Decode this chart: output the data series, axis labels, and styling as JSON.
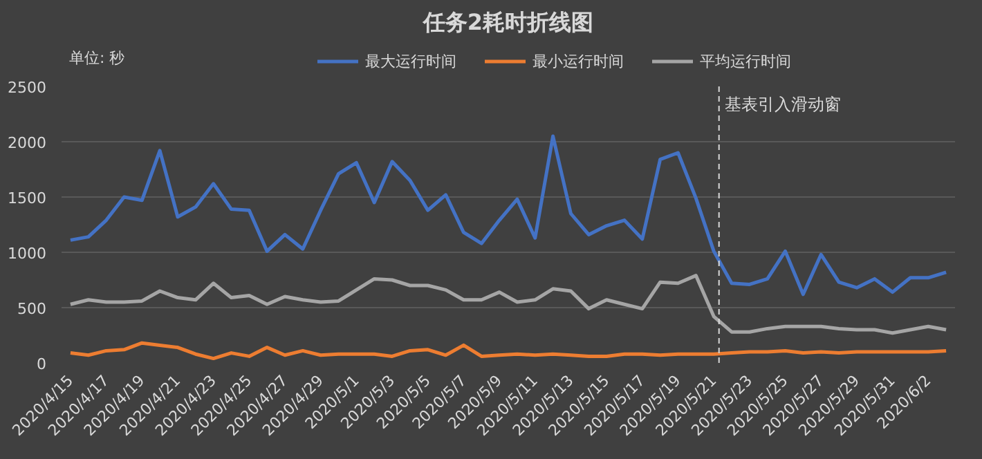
{
  "chart_data": {
    "type": "line",
    "title": "任务2耗时折线图",
    "annotations": [
      "单位:  秒"
    ],
    "x": [
      "2020-04-15",
      "2020-04-16",
      "2020-04-17",
      "2020-04-18",
      "2020-04-19",
      "2020-04-20",
      "2020-04-21",
      "2020-04-22",
      "2020-04-23",
      "2020-04-24",
      "2020-04-25",
      "2020-04-26",
      "2020-04-27",
      "2020-04-28",
      "2020-04-29",
      "2020-04-30",
      "2020-05-01",
      "2020-05-02",
      "2020-05-03",
      "2020-05-04",
      "2020-05-05",
      "2020-05-06",
      "2020-05-07",
      "2020-05-08",
      "2020-05-09",
      "2020-05-10",
      "2020-05-11",
      "2020-05-12",
      "2020-05-13",
      "2020-05-14",
      "2020-05-15",
      "2020-05-16",
      "2020-05-17",
      "2020-05-18",
      "2020-05-19",
      "2020-05-20",
      "2020-05-21",
      "2020-05-22",
      "2020-05-23",
      "2020-05-24",
      "2020-05-25",
      "2020-05-26",
      "2020-05-27",
      "2020-05-28",
      "2020-05-29",
      "2020-05-30",
      "2020-05-31",
      "2020-06-01",
      "2020-06-02",
      "2020-06-03"
    ],
    "series": [
      {
        "name": "最大运行时间",
        "color": "#4472c4",
        "values": [
          1110,
          1140,
          1290,
          1500,
          1470,
          1920,
          1320,
          1410,
          1620,
          1390,
          1380,
          1010,
          1160,
          1030,
          1380,
          1710,
          1810,
          1450,
          1820,
          1650,
          1380,
          1520,
          1180,
          1080,
          1290,
          1480,
          1130,
          2050,
          1350,
          1160,
          1240,
          1290,
          1120,
          1840,
          1900,
          1490,
          1010,
          720,
          710,
          760,
          1010,
          620,
          980,
          730,
          680,
          760,
          640,
          770,
          770,
          820
        ]
      },
      {
        "name": "最小运行时间",
        "color": "#ed7d31",
        "values": [
          90,
          70,
          110,
          120,
          180,
          160,
          140,
          80,
          40,
          90,
          60,
          140,
          70,
          110,
          70,
          80,
          80,
          80,
          60,
          110,
          120,
          70,
          160,
          60,
          70,
          80,
          70,
          80,
          70,
          60,
          60,
          80,
          80,
          70,
          80,
          80,
          80,
          90,
          100,
          100,
          110,
          90,
          100,
          90,
          100,
          100,
          100,
          100,
          100,
          110
        ]
      },
      {
        "name": "平均运行时间",
        "color": "#a5a5a5",
        "values": [
          530,
          570,
          550,
          550,
          560,
          650,
          590,
          570,
          720,
          590,
          610,
          530,
          600,
          570,
          550,
          560,
          660,
          760,
          750,
          700,
          700,
          660,
          570,
          570,
          640,
          550,
          570,
          670,
          650,
          490,
          570,
          530,
          490,
          730,
          720,
          790,
          420,
          280,
          280,
          310,
          330,
          330,
          330,
          310,
          300,
          300,
          270,
          300,
          330,
          300
        ]
      }
    ],
    "xlim": [
      "2020-04-14T12:00",
      "2020-06-03T12:00"
    ],
    "xticks": [
      {
        "value": "2020-04-15",
        "label": "2020/4/15"
      },
      {
        "value": "2020-04-17",
        "label": "2020/4/17"
      },
      {
        "value": "2020-04-19",
        "label": "2020/4/19"
      },
      {
        "value": "2020-04-21",
        "label": "2020/4/21"
      },
      {
        "value": "2020-04-23",
        "label": "2020/4/23"
      },
      {
        "value": "2020-04-25",
        "label": "2020/4/25"
      },
      {
        "value": "2020-04-27",
        "label": "2020/4/27"
      },
      {
        "value": "2020-04-29",
        "label": "2020/4/29"
      },
      {
        "value": "2020-05-01",
        "label": "2020/5/1"
      },
      {
        "value": "2020-05-03",
        "label": "2020/5/3"
      },
      {
        "value": "2020-05-05",
        "label": "2020/5/5"
      },
      {
        "value": "2020-05-07",
        "label": "2020/5/7"
      },
      {
        "value": "2020-05-09",
        "label": "2020/5/9"
      },
      {
        "value": "2020-05-11",
        "label": "2020/5/11"
      },
      {
        "value": "2020-05-13",
        "label": "2020/5/13"
      },
      {
        "value": "2020-05-15",
        "label": "2020/5/15"
      },
      {
        "value": "2020-05-17",
        "label": "2020/5/17"
      },
      {
        "value": "2020-05-19",
        "label": "2020/5/19"
      },
      {
        "value": "2020-05-21",
        "label": "2020/5/21"
      },
      {
        "value": "2020-05-23",
        "label": "2020/5/23"
      },
      {
        "value": "2020-05-25",
        "label": "2020/5/25"
      },
      {
        "value": "2020-05-27",
        "label": "2020/5/27"
      },
      {
        "value": "2020-05-29",
        "label": "2020/5/29"
      },
      {
        "value": "2020-05-31",
        "label": "2020/5/31"
      },
      {
        "value": "2020-06-02",
        "label": "2020/6/2"
      }
    ],
    "ylim": [
      0,
      2500
    ],
    "yticks": [
      0,
      500,
      1000,
      1500,
      2000,
      2500
    ],
    "ref_lines": [
      {
        "axis": "x",
        "value": "2020-05-21T07:00",
        "label": "基表引入滑动窗",
        "color": "#d9d9d9",
        "line_style": "dashed"
      }
    ],
    "grid": "y",
    "legend": "top"
  }
}
